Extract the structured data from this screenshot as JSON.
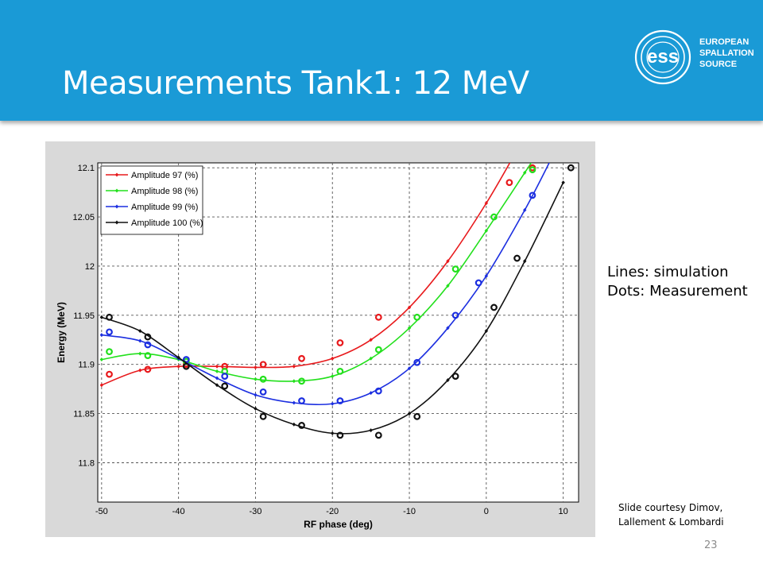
{
  "slide": {
    "title": "Measurements Tank1: 12 MeV",
    "logo_lines": [
      "EUROPEAN",
      "SPALLATION",
      "SOURCE"
    ],
    "notes": [
      "Lines: simulation",
      "Dots: Measurement"
    ],
    "courtesy": [
      "Slide courtesy Dimov,",
      "Lallement & Lombardi"
    ],
    "page_number": "23",
    "header_color": "#1a9ad6"
  },
  "chart_data": {
    "type": "line",
    "title": "",
    "xlabel": "RF phase (deg)",
    "ylabel": "Energy (MeV)",
    "xlim": [
      -50.5,
      12
    ],
    "ylim": [
      11.76,
      12.105
    ],
    "x_ticks": [
      -50,
      -40,
      -30,
      -20,
      -10,
      0,
      10
    ],
    "y_ticks": [
      11.8,
      11.85,
      11.9,
      11.95,
      12,
      12.05,
      12.1
    ],
    "x_tick_labels": [
      "-50",
      "-40",
      "-30",
      "-20",
      "-10",
      "0",
      "10"
    ],
    "y_tick_labels": [
      "11.8",
      "11.85",
      "11.9",
      "11.95",
      "12",
      "12.05",
      "12.1"
    ],
    "grid": true,
    "legend_position": "top-left",
    "series": [
      {
        "name": "Amplitude 97 (%)",
        "color": "#e8191c",
        "simulation": {
          "x": [
            -50,
            -45,
            -40,
            -35,
            -30,
            -25,
            -20,
            -15,
            -10,
            -5,
            0,
            4
          ],
          "y": [
            11.879,
            11.894,
            11.898,
            11.898,
            11.897,
            11.898,
            11.906,
            11.925,
            11.958,
            12.005,
            12.064,
            12.118
          ]
        },
        "measurement": {
          "x": [
            -49,
            -44,
            -39,
            -34,
            -29,
            -24,
            -19,
            -14,
            6,
            3
          ],
          "y": [
            11.89,
            11.895,
            11.9,
            11.898,
            11.9,
            11.906,
            11.922,
            11.948,
            12.1,
            12.085
          ]
        }
      },
      {
        "name": "Amplitude 98 (%)",
        "color": "#22e01c",
        "simulation": {
          "x": [
            -50,
            -45,
            -40,
            -35,
            -30,
            -25,
            -20,
            -15,
            -10,
            -5,
            0,
            5,
            6.5
          ],
          "y": [
            11.905,
            11.911,
            11.905,
            11.893,
            11.885,
            11.883,
            11.888,
            11.906,
            11.937,
            11.98,
            12.036,
            12.095,
            12.113
          ]
        },
        "measurement": {
          "x": [
            -49,
            -44,
            -39,
            -34,
            -29,
            -24,
            -19,
            -14,
            -9,
            -4,
            1,
            6
          ],
          "y": [
            11.913,
            11.909,
            11.903,
            11.893,
            11.885,
            11.883,
            11.893,
            11.915,
            11.948,
            11.997,
            12.05,
            12.098
          ]
        }
      },
      {
        "name": "Amplitude 99 (%)",
        "color": "#1c2fe0",
        "simulation": {
          "x": [
            -50,
            -45,
            -40,
            -35,
            -30,
            -25,
            -20,
            -15,
            -10,
            -5,
            0,
            5,
            8.5
          ],
          "y": [
            11.93,
            11.924,
            11.906,
            11.886,
            11.869,
            11.861,
            11.86,
            11.871,
            11.896,
            11.937,
            11.99,
            12.057,
            12.11
          ]
        },
        "measurement": {
          "x": [
            -49,
            -44,
            -39,
            -34,
            -29,
            -24,
            -19,
            -14,
            -9,
            -4,
            -1,
            6
          ],
          "y": [
            11.933,
            11.92,
            11.905,
            11.888,
            11.872,
            11.863,
            11.863,
            11.873,
            11.902,
            11.95,
            11.983,
            12.072
          ]
        }
      },
      {
        "name": "Amplitude 100 (%)",
        "color": "#111111",
        "simulation": {
          "x": [
            -50,
            -45,
            -40,
            -35,
            -30,
            -25,
            -20,
            -15,
            -10,
            -5,
            0,
            5,
            10
          ],
          "y": [
            11.948,
            11.934,
            11.907,
            11.879,
            11.855,
            11.839,
            11.83,
            11.833,
            11.85,
            11.884,
            11.934,
            12.005,
            12.085
          ]
        },
        "measurement": {
          "x": [
            -49,
            -44,
            -39,
            -34,
            -29,
            -24,
            -19,
            -14,
            -9,
            -4,
            1,
            4,
            11
          ],
          "y": [
            11.948,
            11.928,
            11.898,
            11.878,
            11.847,
            11.838,
            11.828,
            11.828,
            11.847,
            11.888,
            11.958,
            12.008,
            12.1
          ]
        }
      }
    ]
  }
}
